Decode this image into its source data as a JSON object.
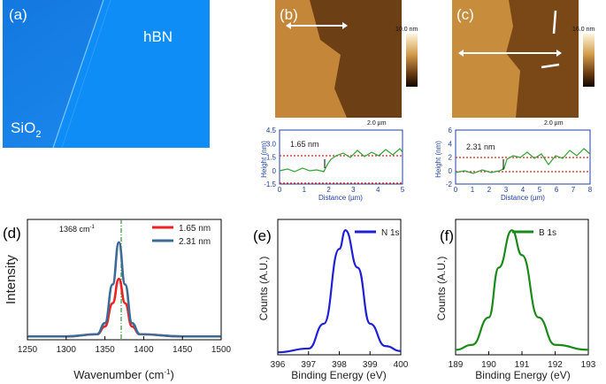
{
  "panel_a": {
    "letter": "(a)",
    "label_hbn": "hBN",
    "label_sio2": "SiO",
    "label_sio2_sub": "2"
  },
  "panel_b": {
    "letter": "(b)",
    "scale_max": "10.0 nm",
    "scale_bar": "2.0 µm"
  },
  "panel_c": {
    "letter": "(c)",
    "scale_max": "16.0 nm",
    "scale_bar": "2.0 µm"
  },
  "profile_b": {
    "step_label": "1.65 nm",
    "ylabel": "Height (nm)",
    "xlabel": "Distance (µm)",
    "yticks": [
      "4.5",
      "3.0",
      "1.5",
      "0",
      "-1.5"
    ],
    "xticks": [
      "0",
      "1",
      "2",
      "3",
      "4",
      "5"
    ]
  },
  "profile_c": {
    "step_label": "2.31 nm",
    "ylabel": "Height (nm)",
    "xlabel": "Distance (µm)",
    "yticks": [
      "6",
      "4",
      "2",
      "0",
      "-2"
    ],
    "xticks": [
      "0",
      "1",
      "2",
      "3",
      "4",
      "5",
      "6",
      "7",
      "8"
    ]
  },
  "panel_d": {
    "letter": "(d)",
    "peak_label": "1368 cm",
    "peak_sup": "-1",
    "ylabel": "Intensity",
    "xlabel": "Wavenumber (cm",
    "xlabel_sup": "-1",
    "xlabel_end": ")"
  },
  "panel_e": {
    "letter": "(e)",
    "ylabel": "Counts (A.U.)",
    "xlabel": "Binding Energy (eV)"
  },
  "panel_f": {
    "letter": "(f)",
    "ylabel": "Counts (A.U.)",
    "xlabel": "Binding Energy (eV)"
  },
  "colors": {
    "red": "#ee2222",
    "steel": "#3d6b98",
    "navy": "#1f1fd6",
    "green": "#1b8a1b"
  },
  "chart_data": [
    {
      "type": "line",
      "title": "(d)",
      "xlabel": "Wavenumber (cm-1)",
      "ylabel": "Intensity",
      "xlim": [
        1250,
        1500
      ],
      "xticks": [
        1250,
        1300,
        1350,
        1400,
        1450,
        1500
      ],
      "x": [
        1250,
        1300,
        1340,
        1350,
        1360,
        1368,
        1376,
        1385,
        1395,
        1450,
        1500
      ],
      "series": [
        {
          "name": "1.65 nm",
          "values": [
            0.03,
            0.03,
            0.05,
            0.12,
            0.33,
            0.55,
            0.33,
            0.12,
            0.05,
            0.03,
            0.03
          ]
        },
        {
          "name": "2.31 nm",
          "values": [
            0.03,
            0.03,
            0.05,
            0.15,
            0.5,
            0.88,
            0.5,
            0.15,
            0.05,
            0.03,
            0.03
          ]
        }
      ],
      "annotations": [
        "1368 cm-1"
      ]
    },
    {
      "type": "line",
      "title": "(e)",
      "xlabel": "Binding Energy (eV)",
      "ylabel": "Counts (A.U.)",
      "xlim": [
        396,
        400
      ],
      "xticks": [
        396,
        397,
        398,
        399,
        400
      ],
      "x": [
        396.0,
        397.0,
        397.5,
        398.0,
        398.2,
        398.6,
        399.0,
        399.5,
        400.0
      ],
      "series": [
        {
          "name": "N 1s",
          "values": [
            0.02,
            0.05,
            0.25,
            0.85,
            1.0,
            0.7,
            0.25,
            0.07,
            0.03
          ]
        }
      ]
    },
    {
      "type": "line",
      "title": "(f)",
      "xlabel": "Binding Energy (eV)",
      "ylabel": "Counts (A.U.)",
      "xlim": [
        189,
        193
      ],
      "xticks": [
        189,
        190,
        191,
        192,
        193
      ],
      "x": [
        189.0,
        189.5,
        190.0,
        190.3,
        190.7,
        191.0,
        191.5,
        192.0,
        193.0
      ],
      "series": [
        {
          "name": "B 1s",
          "values": [
            0.04,
            0.08,
            0.3,
            0.7,
            1.0,
            0.8,
            0.3,
            0.08,
            0.04
          ]
        }
      ]
    }
  ]
}
